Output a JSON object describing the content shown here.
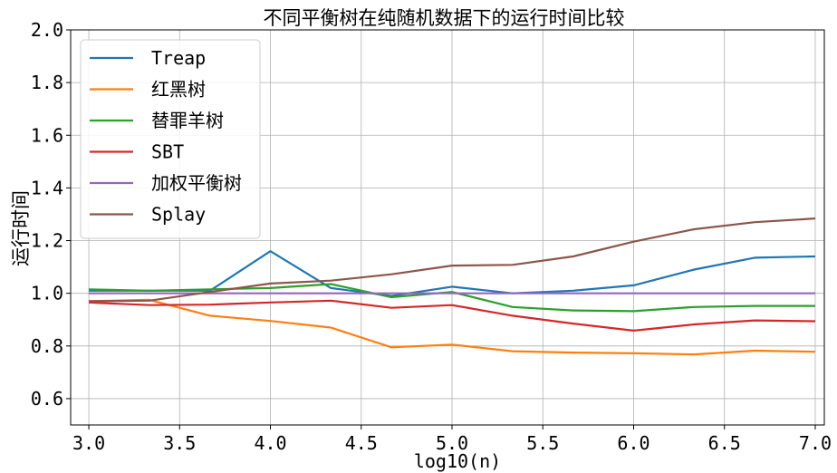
{
  "chart_data": {
    "type": "line",
    "title": "不同平衡树在纯随机数据下的运行时间比较",
    "xlabel": "log10(n)",
    "ylabel": "运行时间",
    "xlim": [
      2.9,
      7.05
    ],
    "ylim": [
      0.5,
      2.0
    ],
    "grid": true,
    "legend_position": "top-left",
    "x_ticks": [
      "3.0",
      "3.5",
      "4.0",
      "4.5",
      "5.0",
      "5.5",
      "6.0",
      "6.5",
      "7.0"
    ],
    "x_tick_values": [
      3.0,
      3.5,
      4.0,
      4.5,
      5.0,
      5.5,
      6.0,
      6.5,
      7.0
    ],
    "y_ticks": [
      "0.6",
      "0.8",
      "1.0",
      "1.2",
      "1.4",
      "1.6",
      "1.8",
      "2.0"
    ],
    "y_tick_values": [
      0.6,
      0.8,
      1.0,
      1.2,
      1.4,
      1.6,
      1.8,
      2.0
    ],
    "x": [
      3.0,
      3.333,
      3.667,
      4.0,
      4.333,
      4.667,
      5.0,
      5.333,
      5.667,
      6.0,
      6.333,
      6.667,
      7.0
    ],
    "series": [
      {
        "name": "Treap",
        "color": "#1f77b4",
        "values": [
          1.01,
          1.01,
          1.01,
          1.16,
          1.02,
          0.99,
          1.025,
          1.0,
          1.01,
          1.03,
          1.09,
          1.135,
          1.14
        ]
      },
      {
        "name": "红黑树",
        "color": "#ff7f0e",
        "values": [
          0.97,
          0.975,
          0.915,
          0.895,
          0.87,
          0.795,
          0.805,
          0.78,
          0.775,
          0.772,
          0.768,
          0.782,
          0.778
        ]
      },
      {
        "name": "替罪羊树",
        "color": "#2ca02c",
        "values": [
          1.015,
          1.01,
          1.015,
          1.02,
          1.035,
          0.985,
          1.005,
          0.948,
          0.935,
          0.932,
          0.948,
          0.952,
          0.952
        ]
      },
      {
        "name": "SBT",
        "color": "#d62728",
        "values": [
          0.965,
          0.955,
          0.957,
          0.965,
          0.972,
          0.945,
          0.955,
          0.915,
          0.885,
          0.858,
          0.882,
          0.897,
          0.894
        ]
      },
      {
        "name": "加权平衡树",
        "color": "#9467bd",
        "values": [
          1.0,
          1.0,
          1.0,
          1.0,
          1.0,
          1.0,
          1.0,
          1.0,
          1.0,
          1.0,
          1.0,
          1.0,
          1.0
        ]
      },
      {
        "name": "Splay",
        "color": "#8c564b",
        "values": [
          0.97,
          0.972,
          1.005,
          1.037,
          1.048,
          1.072,
          1.105,
          1.108,
          1.14,
          1.196,
          1.243,
          1.27,
          1.284
        ]
      }
    ]
  }
}
